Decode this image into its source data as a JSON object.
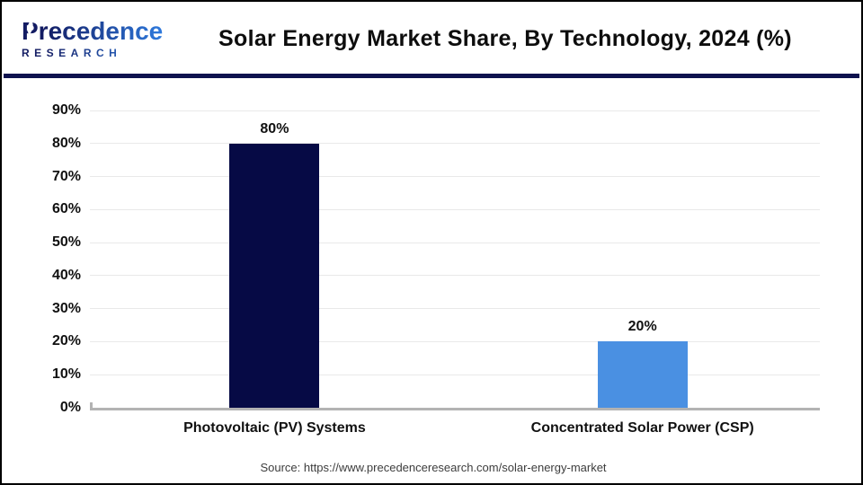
{
  "logo": {
    "brand": "Precedence",
    "subtitle": "RESEARCH"
  },
  "header": {
    "title": "Solar Energy Market Share, By Technology, 2024 (%)"
  },
  "chart_data": {
    "type": "bar",
    "title": "Solar Energy Market Share, By Technology, 2024 (%)",
    "categories": [
      "Photovoltaic (PV) Systems",
      "Concentrated Solar Power (CSP)"
    ],
    "values": [
      80,
      20
    ],
    "value_labels": [
      "80%",
      "20%"
    ],
    "bar_colors": [
      "#060a45",
      "#4a90e2"
    ],
    "xlabel": "",
    "ylabel": "",
    "ylim": [
      0,
      90
    ],
    "yticks": [
      0,
      10,
      20,
      30,
      40,
      50,
      60,
      70,
      80,
      90
    ],
    "ytick_labels": [
      "0%",
      "10%",
      "20%",
      "30%",
      "40%",
      "50%",
      "60%",
      "70%",
      "80%",
      "90%"
    ],
    "grid": true,
    "legend": false
  },
  "footer": {
    "source": "Source: https://www.precedenceresearch.com/solar-energy-market"
  },
  "colors": {
    "divider": "#0e124e",
    "axis_line": "#b3b3b3",
    "gridline": "#e9e9e9",
    "title_text": "#0d0d0d",
    "tick_text": "#111111",
    "source_text": "#3d3d3d"
  }
}
